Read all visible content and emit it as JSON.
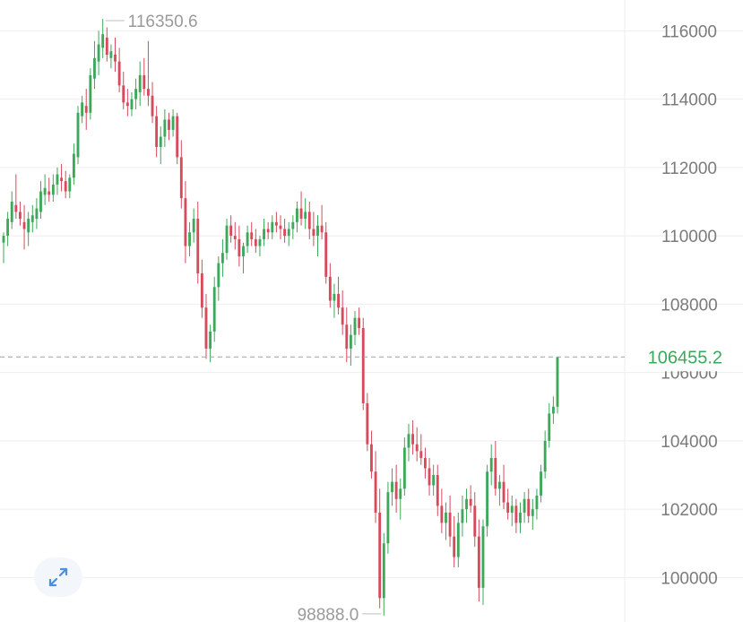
{
  "chart_data": {
    "type": "candlestick",
    "ylim": [
      98700,
      116900
    ],
    "y_ticks": [
      100000,
      102000,
      104000,
      106000,
      108000,
      110000,
      112000,
      114000,
      116000
    ],
    "y_tick_labels": [
      "100000",
      "102000",
      "104000",
      "106000",
      "108000",
      "110000",
      "112000",
      "114000",
      "116000"
    ],
    "grid": true,
    "up_color": "#3ea85a",
    "down_color": "#d64a5c",
    "last_price": {
      "value": 106455.2,
      "label": "106455.2",
      "color": "#3ea85a"
    },
    "high_marker": {
      "value": 116350.6,
      "label": "116350.6"
    },
    "low_marker": {
      "value": 98888.0,
      "label": "98888.0"
    },
    "candles": [
      [
        109800,
        110100,
        109200,
        110000
      ],
      [
        110000,
        110700,
        109700,
        110500
      ],
      [
        110400,
        111300,
        110200,
        111000
      ],
      [
        110900,
        111800,
        110500,
        110700
      ],
      [
        110700,
        111000,
        110300,
        110500
      ],
      [
        110400,
        110900,
        109600,
        110200
      ],
      [
        110100,
        110700,
        109700,
        110500
      ],
      [
        110400,
        110900,
        110100,
        110600
      ],
      [
        110500,
        111100,
        110200,
        110800
      ],
      [
        110700,
        111600,
        110500,
        111300
      ],
      [
        111200,
        111800,
        110900,
        111400
      ],
      [
        111300,
        111700,
        111000,
        111200
      ],
      [
        111200,
        111800,
        111000,
        111500
      ],
      [
        111500,
        112000,
        111200,
        111800
      ],
      [
        111700,
        112100,
        111300,
        111600
      ],
      [
        111600,
        111900,
        111100,
        111300
      ],
      [
        111300,
        111800,
        111100,
        111700
      ],
      [
        111700,
        112700,
        111500,
        112400
      ],
      [
        112300,
        113800,
        112100,
        113600
      ],
      [
        113500,
        114100,
        113300,
        113900
      ],
      [
        113800,
        114300,
        113100,
        113600
      ],
      [
        113600,
        114900,
        113400,
        114700
      ],
      [
        114600,
        115700,
        114300,
        115200
      ],
      [
        115100,
        116000,
        114700,
        115600
      ],
      [
        115500,
        116350.6,
        115200,
        115900
      ],
      [
        115800,
        116100,
        115100,
        115300
      ],
      [
        115200,
        115600,
        114900,
        115400
      ],
      [
        115300,
        115800,
        114800,
        115100
      ],
      [
        115100,
        115500,
        114200,
        114400
      ],
      [
        114400,
        114800,
        113700,
        113900
      ],
      [
        113900,
        114300,
        113500,
        113800
      ],
      [
        113700,
        114200,
        113500,
        114000
      ],
      [
        114000,
        114600,
        113700,
        114300
      ],
      [
        114200,
        115100,
        113800,
        114700
      ],
      [
        114700,
        115200,
        114100,
        114300
      ],
      [
        114300,
        115700,
        113800,
        114100
      ],
      [
        114100,
        114500,
        113300,
        113500
      ],
      [
        113500,
        113800,
        112300,
        112600
      ],
      [
        112600,
        113200,
        112100,
        112900
      ],
      [
        112900,
        113700,
        112600,
        113400
      ],
      [
        113400,
        113600,
        112800,
        113100
      ],
      [
        113100,
        113700,
        112900,
        113500
      ],
      [
        113500,
        113600,
        112100,
        112300
      ],
      [
        112300,
        112800,
        110800,
        111100
      ],
      [
        111100,
        111600,
        109200,
        109700
      ],
      [
        109700,
        110400,
        109400,
        110100
      ],
      [
        110100,
        110800,
        109800,
        110500
      ],
      [
        110500,
        111000,
        108600,
        108900
      ],
      [
        108900,
        109300,
        107600,
        107900
      ],
      [
        107900,
        108300,
        106400,
        106700
      ],
      [
        106700,
        107400,
        106300,
        107200
      ],
      [
        107200,
        108800,
        106900,
        108500
      ],
      [
        108500,
        109400,
        108100,
        109200
      ],
      [
        109200,
        109900,
        108800,
        109500
      ],
      [
        109500,
        110500,
        109300,
        110300
      ],
      [
        110300,
        110600,
        109800,
        110000
      ],
      [
        110000,
        110400,
        109600,
        109900
      ],
      [
        109900,
        110300,
        109100,
        109400
      ],
      [
        109400,
        109800,
        108900,
        109700
      ],
      [
        109700,
        110300,
        109500,
        110100
      ],
      [
        110100,
        110400,
        109700,
        109900
      ],
      [
        109900,
        110200,
        109500,
        109700
      ],
      [
        109700,
        110000,
        109400,
        109900
      ],
      [
        109900,
        110500,
        109700,
        110200
      ],
      [
        110200,
        110400,
        109900,
        110100
      ],
      [
        110100,
        110600,
        109900,
        110400
      ],
      [
        110400,
        110700,
        110100,
        110300
      ],
      [
        110300,
        110600,
        109900,
        110200
      ],
      [
        110200,
        110500,
        109800,
        110000
      ],
      [
        110000,
        110400,
        109700,
        110200
      ],
      [
        110200,
        110600,
        109900,
        110400
      ],
      [
        110400,
        111000,
        110100,
        110800
      ],
      [
        110800,
        111300,
        110300,
        110500
      ],
      [
        110500,
        111100,
        110200,
        110700
      ],
      [
        110700,
        111000,
        109900,
        110200
      ],
      [
        110200,
        110700,
        109700,
        110000
      ],
      [
        110000,
        110600,
        109400,
        110300
      ],
      [
        110300,
        110900,
        109900,
        110100
      ],
      [
        110100,
        110400,
        108600,
        108800
      ],
      [
        108800,
        109200,
        107900,
        108100
      ],
      [
        108100,
        108600,
        107600,
        108300
      ],
      [
        108300,
        108800,
        107700,
        107900
      ],
      [
        107900,
        108400,
        107100,
        107400
      ],
      [
        107400,
        107900,
        106300,
        106700
      ],
      [
        106700,
        107400,
        106200,
        107100
      ],
      [
        107100,
        107800,
        106800,
        107600
      ],
      [
        107600,
        107900,
        107100,
        107300
      ],
      [
        107300,
        107600,
        104900,
        105100
      ],
      [
        105100,
        105400,
        103700,
        103900
      ],
      [
        103900,
        104300,
        102900,
        103100
      ],
      [
        103100,
        103700,
        101600,
        101900
      ],
      [
        101900,
        102600,
        99100,
        99400
      ],
      [
        99400,
        101300,
        98888.0,
        101000
      ],
      [
        101000,
        102800,
        100700,
        102500
      ],
      [
        102500,
        103200,
        102100,
        102800
      ],
      [
        102800,
        103300,
        101900,
        102300
      ],
      [
        102300,
        102900,
        101700,
        102600
      ],
      [
        102600,
        104100,
        102400,
        103800
      ],
      [
        103800,
        104500,
        103400,
        104200
      ],
      [
        104200,
        104600,
        103600,
        103900
      ],
      [
        103900,
        104400,
        103400,
        103700
      ],
      [
        103700,
        104200,
        103300,
        103500
      ],
      [
        103500,
        103800,
        102900,
        103200
      ],
      [
        103200,
        103500,
        102400,
        102700
      ],
      [
        102700,
        103300,
        102400,
        103000
      ],
      [
        103000,
        103300,
        101800,
        102100
      ],
      [
        102100,
        102600,
        101300,
        101600
      ],
      [
        101600,
        102200,
        101100,
        101900
      ],
      [
        101900,
        102400,
        100900,
        101200
      ],
      [
        101200,
        101800,
        100300,
        100600
      ],
      [
        100600,
        101900,
        100300,
        101600
      ],
      [
        101600,
        102400,
        101200,
        102000
      ],
      [
        102000,
        102600,
        101600,
        102300
      ],
      [
        102300,
        102700,
        101900,
        102100
      ],
      [
        102100,
        102500,
        100900,
        101200
      ],
      [
        101200,
        101700,
        99300,
        99700
      ],
      [
        99700,
        101700,
        99200,
        101500
      ],
      [
        101500,
        103300,
        101200,
        103100
      ],
      [
        103100,
        103900,
        102700,
        103500
      ],
      [
        103500,
        104000,
        102400,
        102600
      ],
      [
        102600,
        103000,
        102100,
        102800
      ],
      [
        102800,
        103300,
        102000,
        102200
      ],
      [
        102200,
        102600,
        101700,
        101900
      ],
      [
        101900,
        102400,
        101500,
        102100
      ],
      [
        102100,
        102300,
        101300,
        101600
      ],
      [
        101600,
        102200,
        101300,
        101900
      ],
      [
        101900,
        102500,
        101600,
        102300
      ],
      [
        102300,
        102600,
        101600,
        101800
      ],
      [
        101800,
        102300,
        101400,
        102000
      ],
      [
        102000,
        102600,
        101700,
        102400
      ],
      [
        102400,
        103300,
        102200,
        103100
      ],
      [
        103100,
        104300,
        102900,
        104000
      ],
      [
        104000,
        105100,
        103800,
        104800
      ],
      [
        104800,
        105300,
        104500,
        105000
      ],
      [
        105000,
        106455.2,
        104800,
        106455.2
      ]
    ]
  },
  "ui": {
    "expand_icon": "expand-arrows-icon",
    "grid_color": "#eeeeee",
    "axis_text_color": "#7b7b7b",
    "marker_text_color": "#9a9a9a",
    "last_price_line_color": "#9aa0a6"
  }
}
